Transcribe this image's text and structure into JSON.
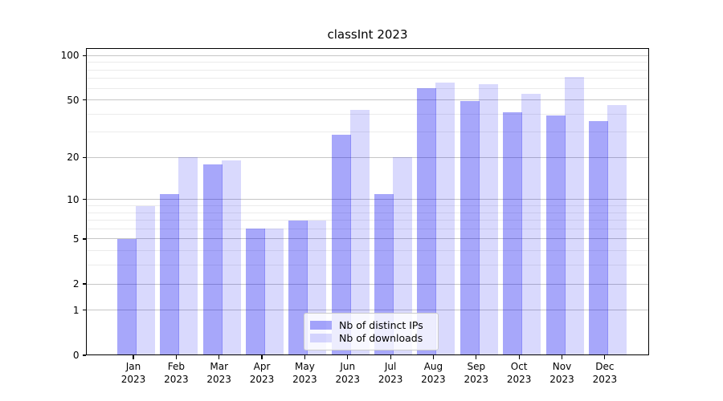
{
  "figure": {
    "title": "classInt 2023"
  },
  "chart_data": {
    "type": "bar",
    "title": "classInt 2023",
    "categories": [
      "Jan",
      "Feb",
      "Mar",
      "Apr",
      "May",
      "Jun",
      "Jul",
      "Aug",
      "Sep",
      "Oct",
      "Nov",
      "Dec"
    ],
    "category_year": "2023",
    "series": [
      {
        "name": "Nb of distinct IPs",
        "color_hex": "#0000f0",
        "alpha": 0.345,
        "values": [
          5,
          11,
          18,
          6,
          7,
          29,
          11,
          60,
          49,
          41,
          39,
          36
        ]
      },
      {
        "name": "Nb of downloads",
        "color_hex": "#0000f0",
        "alpha": 0.148,
        "values": [
          9,
          20,
          19,
          6,
          7,
          43,
          20,
          66,
          64,
          55,
          72,
          46
        ]
      }
    ],
    "xlabel": "",
    "ylabel": "",
    "yscale": "log1p",
    "ylim": [
      0,
      112
    ],
    "y_ticks_labeled": [
      0,
      1,
      2,
      5,
      10,
      20,
      50,
      100
    ],
    "y_ticks_minor": [
      3,
      4,
      6,
      7,
      8,
      9,
      30,
      40,
      60,
      70,
      80,
      90
    ],
    "grid": true,
    "legend": {
      "position": "lower center",
      "items": [
        "Nb of distinct IPs",
        "Nb of downloads"
      ]
    }
  }
}
